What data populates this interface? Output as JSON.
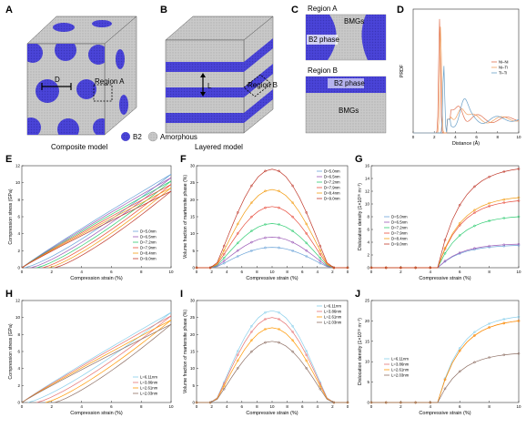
{
  "colors": {
    "b2": "#4a44d8",
    "b2_dark": "#3a35b8",
    "amorphous": "#c7c7c7",
    "series_E": [
      "#6aa3d8",
      "#9b59b6",
      "#2ecc71",
      "#e74c3c",
      "#f39c12",
      "#c0392b"
    ],
    "series_I": [
      "#87ceeb",
      "#e57373",
      "#ff9800",
      "#8d6e63"
    ]
  },
  "panels": {
    "A": {
      "letter": "A",
      "caption": "Composite model",
      "dim_label": "D",
      "region_label": "Region A"
    },
    "B": {
      "letter": "B",
      "caption": "Layered model",
      "dim_label": "L",
      "region_label": "Region B"
    },
    "legend": {
      "b2": "B2",
      "amorphous": "Amorphous"
    },
    "C": {
      "letter": "C",
      "region_a": "Region A",
      "region_b": "Region B",
      "bmgs": "BMGs",
      "b2_phase": "B2 phase",
      "b2_phase_lower": "B2 phase",
      "bmgs_lower": "BMGs"
    },
    "D": {
      "letter": "D"
    },
    "E": {
      "letter": "E"
    },
    "F": {
      "letter": "F"
    },
    "G": {
      "letter": "G"
    },
    "H": {
      "letter": "H"
    },
    "I": {
      "letter": "I"
    },
    "J": {
      "letter": "J"
    }
  },
  "chart_data": [
    {
      "id": "D",
      "type": "line",
      "xlabel": "Distance (Å)",
      "ylabel": "PRDF",
      "xlim": [
        0,
        10
      ],
      "xticks": [
        "0",
        "2",
        "4",
        "6",
        "8",
        "10"
      ],
      "legend": [
        "Ni–Ni",
        "Ni–Ti",
        "Ti–Ti"
      ],
      "series": [
        {
          "name": "Ni–Ni",
          "color": "#e07050",
          "peak_x": 2.5,
          "peak_y": 1.0
        },
        {
          "name": "Ni–Ti",
          "color": "#f0a060",
          "peak_x": 2.6,
          "peak_y": 0.95
        },
        {
          "name": "Ti–Ti",
          "color": "#6aa0c8",
          "peak_x": 2.9,
          "peak_y": 0.6
        }
      ]
    },
    {
      "id": "E",
      "type": "line",
      "xlabel": "Compression strain (%)",
      "ylabel": "Compression stress (GPa)",
      "xlim": [
        0,
        10
      ],
      "ylim": [
        0,
        12
      ],
      "xticks": [
        "0",
        "2",
        "4",
        "6",
        "8",
        "10"
      ],
      "yticks": [
        "0",
        "2",
        "4",
        "6",
        "8",
        "10",
        "12"
      ],
      "legend": [
        "D=5.0nm",
        "D=6.5nm",
        "D=7.2nm",
        "D=7.9nm",
        "D=8.4nm",
        "D=9.0nm"
      ],
      "series": [
        {
          "name": "D=5.0nm",
          "load_end": 11.0,
          "unload_zero_x": 0.2
        },
        {
          "name": "D=6.5nm",
          "load_end": 10.6,
          "unload_zero_x": 0.6
        },
        {
          "name": "D=7.2nm",
          "load_end": 10.2,
          "unload_zero_x": 1.0
        },
        {
          "name": "D=7.9nm",
          "load_end": 9.8,
          "unload_zero_x": 1.4
        },
        {
          "name": "D=8.4nm",
          "load_end": 9.4,
          "unload_zero_x": 1.8
        },
        {
          "name": "D=9.0nm",
          "load_end": 9.0,
          "unload_zero_x": 2.2
        }
      ]
    },
    {
      "id": "F",
      "type": "line",
      "xlabel": "Compressive strain (%)",
      "ylabel": "Volume fraction of martensite phase (%)",
      "xlim": [
        0,
        20
      ],
      "ylim": [
        0,
        30
      ],
      "xticks": [
        "0",
        "2",
        "4",
        "6",
        "8",
        "10",
        "8",
        "6",
        "4",
        "2",
        "0"
      ],
      "yticks": [
        "0",
        "5",
        "10",
        "15",
        "20",
        "25",
        "30"
      ],
      "legend": [
        "D=5.0nm",
        "D=6.5nm",
        "D=7.2nm",
        "D=7.9nm",
        "D=8.4nm",
        "D=9.0nm"
      ],
      "series": [
        {
          "name": "D=5.0nm",
          "peak": 6
        },
        {
          "name": "D=6.5nm",
          "peak": 9
        },
        {
          "name": "D=7.2nm",
          "peak": 13
        },
        {
          "name": "D=7.9nm",
          "peak": 18
        },
        {
          "name": "D=8.4nm",
          "peak": 23
        },
        {
          "name": "D=9.0nm",
          "peak": 29
        }
      ]
    },
    {
      "id": "G",
      "type": "line",
      "xlabel": "Compressive strain (%)",
      "ylabel": "Dislocation density (1×10¹⁶ m⁻²)",
      "xlim": [
        0,
        10
      ],
      "ylim": [
        0,
        16
      ],
      "xticks": [
        "0",
        "2",
        "4",
        "6",
        "8",
        "10"
      ],
      "yticks": [
        "0",
        "2",
        "4",
        "6",
        "8",
        "10",
        "12",
        "14",
        "16"
      ],
      "legend": [
        "D=5.0nm",
        "D=6.5nm",
        "D=7.2nm",
        "D=7.9nm",
        "D=8.4nm",
        "D=9.0nm"
      ],
      "series": [
        {
          "name": "D=5.0nm",
          "end": 3.5
        },
        {
          "name": "D=6.5nm",
          "end": 3.7
        },
        {
          "name": "D=7.2nm",
          "end": 8.0
        },
        {
          "name": "D=7.9nm",
          "end": 10.5
        },
        {
          "name": "D=8.4nm",
          "end": 11.0
        },
        {
          "name": "D=9.0nm",
          "end": 15.5
        }
      ]
    },
    {
      "id": "H",
      "type": "line",
      "xlabel": "Compression strain (%)",
      "ylabel": "Compression stress (GPa)",
      "xlim": [
        0,
        10
      ],
      "ylim": [
        0,
        12
      ],
      "xticks": [
        "0",
        "2",
        "4",
        "6",
        "8",
        "10"
      ],
      "yticks": [
        "0",
        "2",
        "4",
        "6",
        "8",
        "10",
        "12"
      ],
      "legend": [
        "L=6.11nm",
        "L=3.86nm",
        "L=2.61nm",
        "L=2.03nm"
      ],
      "series": [
        {
          "name": "L=6.11nm",
          "load_end": 10.6,
          "unload_zero_x": 0.4
        },
        {
          "name": "L=3.86nm",
          "load_end": 10.2,
          "unload_zero_x": 1.0
        },
        {
          "name": "L=2.61nm",
          "load_end": 9.7,
          "unload_zero_x": 1.6
        },
        {
          "name": "L=2.03nm",
          "load_end": 9.2,
          "unload_zero_x": 2.2
        }
      ]
    },
    {
      "id": "I",
      "type": "line",
      "xlabel": "Compressive strain (%)",
      "ylabel": "Volume fraction of martensite phase (%)",
      "xlim": [
        0,
        20
      ],
      "ylim": [
        0,
        30
      ],
      "xticks": [
        "0",
        "2",
        "4",
        "6",
        "8",
        "10",
        "8",
        "6",
        "4",
        "2",
        "0"
      ],
      "yticks": [
        "0",
        "5",
        "10",
        "15",
        "20",
        "25",
        "30"
      ],
      "legend": [
        "L=6.11nm",
        "L=3.86nm",
        "L=2.61nm",
        "L=2.03nm"
      ],
      "series": [
        {
          "name": "L=6.11nm",
          "peak": 27
        },
        {
          "name": "L=3.86nm",
          "peak": 25
        },
        {
          "name": "L=2.61nm",
          "peak": 22
        },
        {
          "name": "L=2.03nm",
          "peak": 18
        }
      ]
    },
    {
      "id": "J",
      "type": "line",
      "xlabel": "Compressive strain (%)",
      "ylabel": "Dislocation density (1×10¹⁶ m⁻²)",
      "xlim": [
        0,
        10
      ],
      "ylim": [
        0,
        25
      ],
      "xticks": [
        "0",
        "2",
        "4",
        "6",
        "8",
        "10"
      ],
      "yticks": [
        "0",
        "5",
        "10",
        "15",
        "20",
        "25"
      ],
      "legend": [
        "L=6.11nm",
        "L=3.86nm",
        "L=2.61nm",
        "L=2.03nm"
      ],
      "series": [
        {
          "name": "L=6.11nm",
          "end": 21
        },
        {
          "name": "L=3.86nm",
          "end": 20
        },
        {
          "name": "L=2.61nm",
          "end": 20
        },
        {
          "name": "L=2.03nm",
          "end": 12
        }
      ]
    }
  ]
}
